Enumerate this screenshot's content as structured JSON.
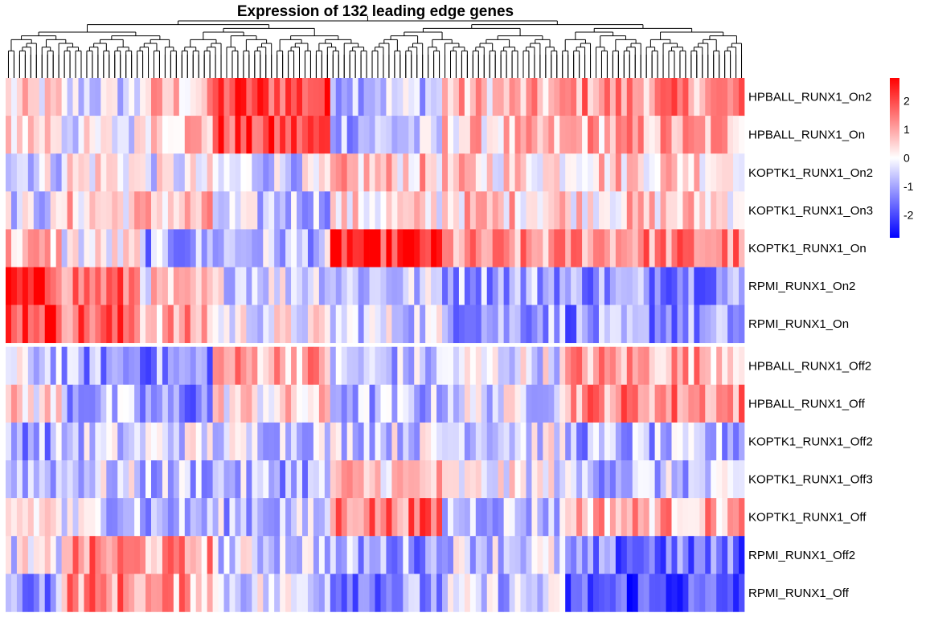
{
  "chart_data": {
    "type": "heatmap",
    "title": "Expression of 132 leading edge genes",
    "n_columns": 132,
    "rows": [
      "HPBALL_RUNX1_On2",
      "HPBALL_RUNX1_On",
      "KOPTK1_RUNX1_On2",
      "KOPTK1_RUNX1_On3",
      "KOPTK1_RUNX1_On",
      "RPMI_RUNX1_On2",
      "RPMI_RUNX1_On",
      "HPBALL_RUNX1_Off2",
      "HPBALL_RUNX1_Off",
      "KOPTK1_RUNX1_Off2",
      "KOPTK1_RUNX1_Off3",
      "KOPTK1_RUNX1_Off",
      "RPMI_RUNX1_Off2",
      "RPMI_RUNX1_Off"
    ],
    "row_gap_after_index": 6,
    "block_profiles": [
      {
        "columns": [
          0,
          10
        ],
        "values": [
          0.2,
          0.6,
          -0.3,
          -0.4,
          0.7,
          2.1,
          2.2,
          -0.5,
          0.3,
          -0.9,
          -0.6,
          0.4,
          -0.2,
          -1.1
        ]
      },
      {
        "columns": [
          10,
          24
        ],
        "values": [
          -0.4,
          -0.2,
          0.3,
          0.5,
          0.0,
          1.5,
          1.7,
          -1.1,
          -0.9,
          -0.6,
          -0.5,
          -0.4,
          1.2,
          1.3
        ]
      },
      {
        "columns": [
          24,
          37
        ],
        "values": [
          0.6,
          0.8,
          -0.2,
          0.6,
          -1.0,
          0.3,
          0.9,
          -1.2,
          -1.3,
          -0.3,
          -0.7,
          -0.9,
          1.0,
          1.0
        ]
      },
      {
        "columns": [
          37,
          58
        ],
        "values": [
          2.0,
          1.9,
          -0.4,
          -0.6,
          -0.7,
          -0.2,
          -0.1,
          1.0,
          0.3,
          -0.4,
          -0.8,
          -0.7,
          -0.4,
          -0.3
        ]
      },
      {
        "columns": [
          58,
          78
        ],
        "values": [
          -0.5,
          -0.7,
          0.6,
          0.2,
          2.3,
          -0.6,
          -0.4,
          -0.7,
          -0.8,
          -0.4,
          0.6,
          1.5,
          -1.0,
          -1.2
        ]
      },
      {
        "columns": [
          78,
          100
        ],
        "values": [
          0.7,
          0.5,
          0.4,
          0.6,
          1.0,
          -0.9,
          -0.9,
          -0.2,
          -0.3,
          -0.3,
          -0.1,
          -0.6,
          -0.4,
          -0.6
        ]
      },
      {
        "columns": [
          100,
          132
        ],
        "values": [
          1.2,
          0.9,
          0.6,
          0.5,
          1.3,
          -1.1,
          -1.2,
          1.0,
          1.3,
          -0.9,
          -0.7,
          0.9,
          -1.6,
          -1.9
        ]
      }
    ],
    "color_scale": {
      "low": "#0000ff",
      "mid": "#ffffff",
      "high": "#ff0000",
      "range": [
        -2.8,
        2.8
      ],
      "ticks": [
        2,
        1,
        0,
        -1,
        -2
      ],
      "tick_labels": [
        "2",
        "1",
        "0",
        "-1",
        "-2"
      ]
    },
    "column_dendrogram": true,
    "legend_placement": "top-right"
  }
}
